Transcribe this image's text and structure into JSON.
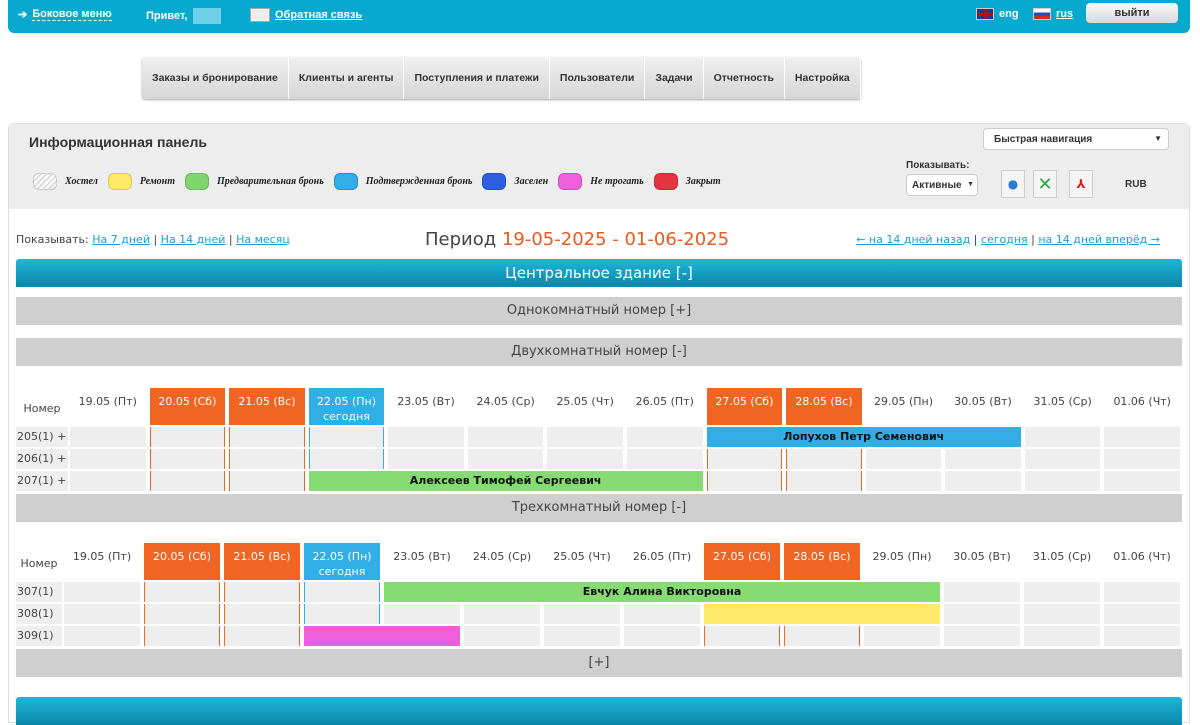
{
  "topbar": {
    "side_menu": "Боковое меню",
    "greeting": "Привет,",
    "feedback": "Обратная связь",
    "lang_en": "eng",
    "lang_ru": "rus",
    "logout": "выйти"
  },
  "nav": [
    "Заказы и бронирование",
    "Клиенты и агенты",
    "Поступления и платежи",
    "Пользователи",
    "Задачи",
    "Отчетность",
    "Настройка"
  ],
  "panel": {
    "title": "Информационная панель",
    "quick_nav": "Быстрая навигация",
    "show_label": "Показывать:",
    "show_value": "Активные",
    "currency": "RUB"
  },
  "legend": [
    {
      "label": "Хостел",
      "color": "#e6e6e6"
    },
    {
      "label": "Ремонт",
      "color": "#fdea6a"
    },
    {
      "label": "Предварительная бронь",
      "color": "#7fd66f"
    },
    {
      "label": "Подтвержденная бронь",
      "color": "#33ade6"
    },
    {
      "label": "Заселен",
      "color": "#2d5ee0"
    },
    {
      "label": "Не трогать",
      "color": "#ee5fdc"
    },
    {
      "label": "Закрыт",
      "color": "#e53340"
    }
  ],
  "show": {
    "label": "Показывать:",
    "opt7": "На 7 дней",
    "opt14": "На 14 дней",
    "optm": "На месяц"
  },
  "period": {
    "label": "Период",
    "range": "19-05-2025 - 01-06-2025"
  },
  "pnav": {
    "back": "← на 14 дней назад",
    "today": "сегодня",
    "fwd": "на 14 дней вперёд →"
  },
  "building": "Центральное здание [-]",
  "dates": [
    {
      "d": "19.05 (Пт)"
    },
    {
      "d": "20.05 (Сб)",
      "we": true
    },
    {
      "d": "21.05 (Вс)",
      "we": true
    },
    {
      "d": "22.05 (Пн)",
      "today": true
    },
    {
      "d": "23.05 (Вт)"
    },
    {
      "d": "24.05 (Ср)"
    },
    {
      "d": "25.05 (Чт)"
    },
    {
      "d": "26.05 (Пт)"
    },
    {
      "d": "27.05 (Сб)",
      "we": true
    },
    {
      "d": "28.05 (Вс)",
      "we": true
    },
    {
      "d": "29.05 (Пн)"
    },
    {
      "d": "30.05 (Вт)"
    },
    {
      "d": "31.05 (Ср)"
    },
    {
      "d": "01.06 (Чт)"
    }
  ],
  "today_label": "сегодня",
  "room_col": "Номер",
  "sections": [
    {
      "title": "Однокомнатный номер [+]"
    },
    {
      "title": "Двухкомнатный номер [-]",
      "rooms": [
        "205(1) +",
        "206(1) +",
        "207(1) +"
      ],
      "bookings": [
        {
          "room": 0,
          "from": "27.05",
          "to": "30.05",
          "name": "Лопухов Петр Семенович",
          "color": "#33ade6"
        },
        {
          "room": 2,
          "from": "22.05",
          "to": "26.05",
          "name": "Алексеев Тимофей Сергеевич",
          "color": "#86dc73"
        }
      ]
    },
    {
      "title": "Трехкомнатный номер [-]",
      "rooms": [
        "307(1)",
        "308(1)",
        "309(1)"
      ],
      "bookings": [
        {
          "room": 0,
          "from": "23.05",
          "to": "29.05",
          "name": "Евчук Алина Викторовна",
          "color": "#86dc73"
        },
        {
          "room": 1,
          "from": "27.05",
          "to": "29.05",
          "name": "",
          "color": "#fdea6a"
        },
        {
          "room": 2,
          "from": "22.05",
          "to": "23.05",
          "name": "",
          "color": "#ee5fdc"
        }
      ]
    },
    {
      "title": "[+]"
    }
  ]
}
